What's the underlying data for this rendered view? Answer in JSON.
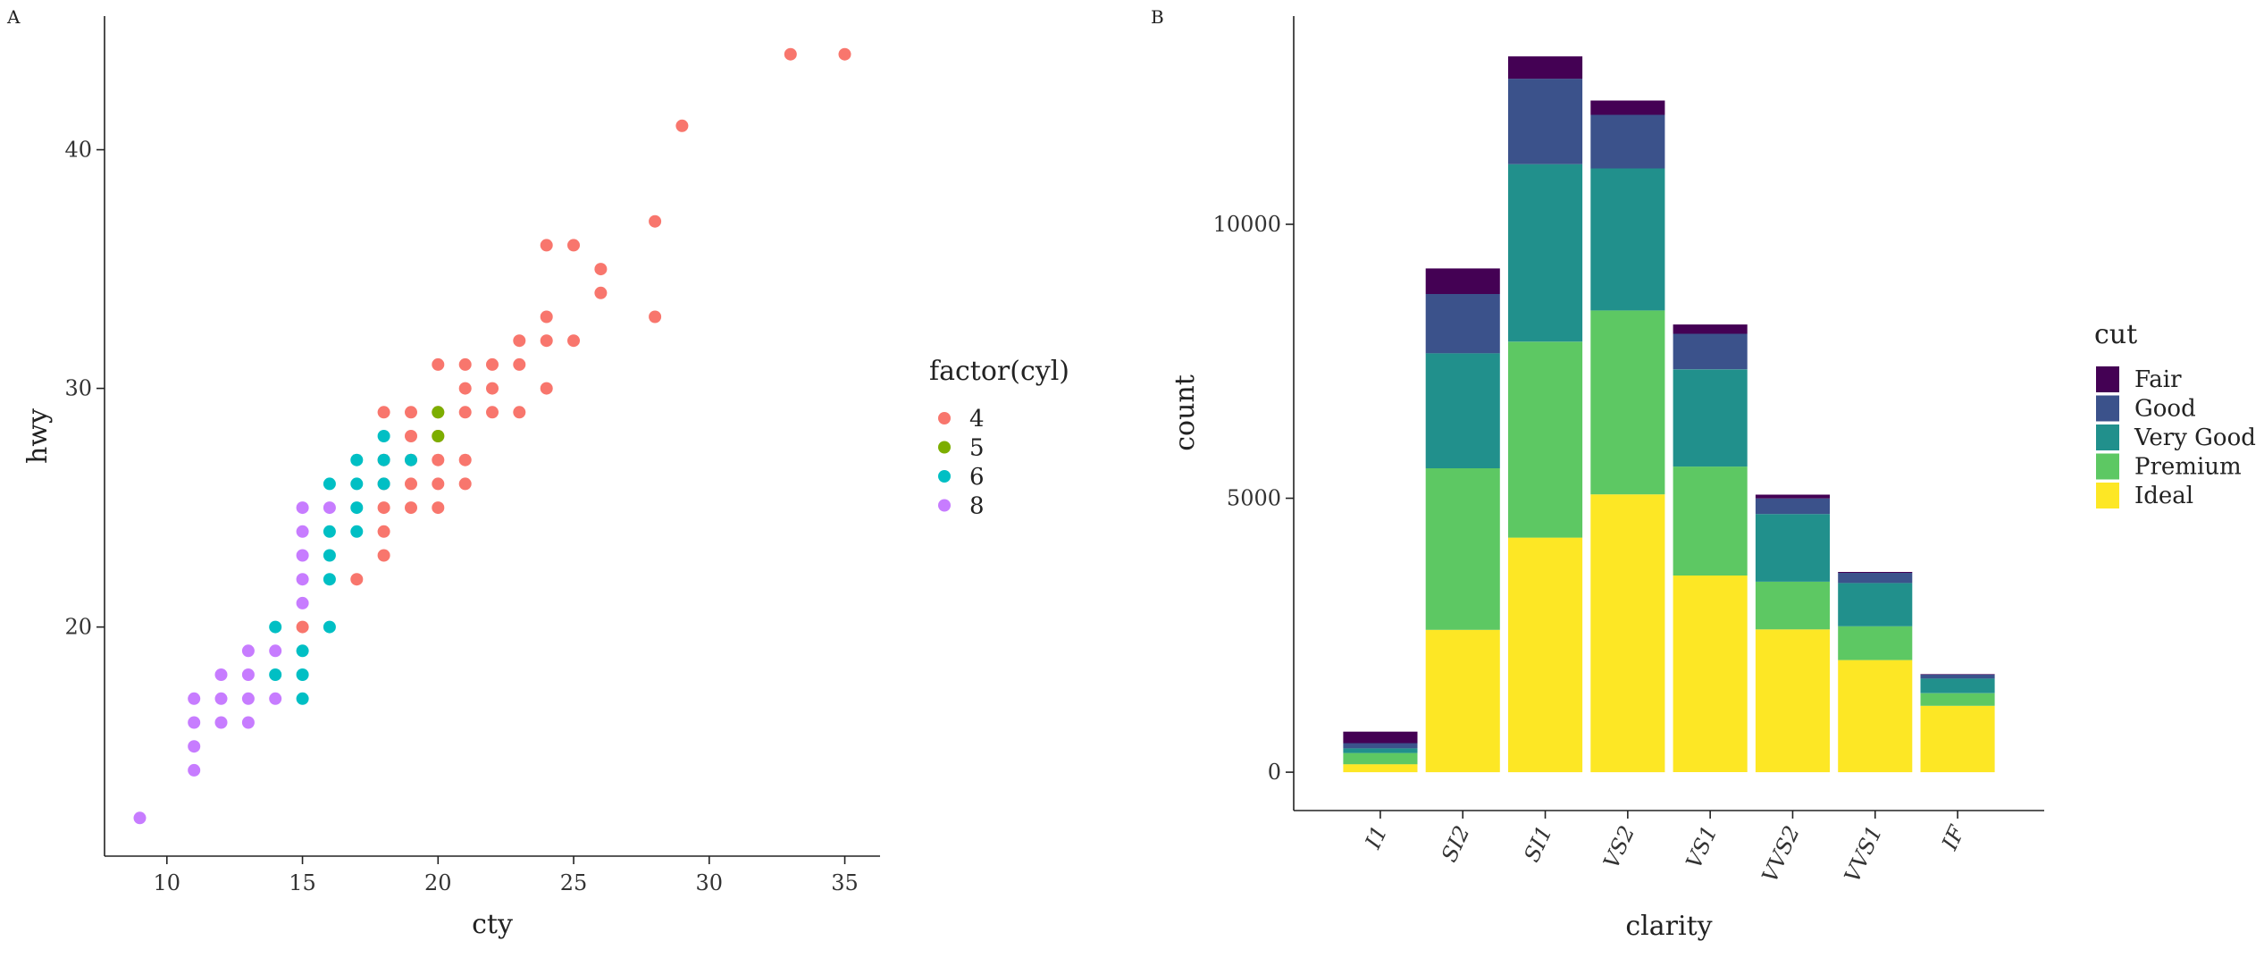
{
  "chart_data": [
    {
      "type": "scatter",
      "tag": "A",
      "xlabel": "cty",
      "ylabel": "hwy",
      "xlim": [
        7.7,
        36.3
      ],
      "ylim": [
        10.4,
        45.6
      ],
      "x_ticks": [
        10,
        15,
        20,
        25,
        30,
        35
      ],
      "y_ticks": [
        20,
        30,
        40
      ],
      "grid": false,
      "legend": {
        "title": "factor(cyl)",
        "position": "right",
        "entries": [
          {
            "label": "4",
            "color": "#F8766D"
          },
          {
            "label": "5",
            "color": "#7CAE00"
          },
          {
            "label": "6",
            "color": "#00BFC4"
          },
          {
            "label": "8",
            "color": "#C77CFF"
          }
        ]
      },
      "series": [
        {
          "name": "4",
          "color": "#F8766D",
          "points": [
            [
              15,
              20
            ],
            [
              17,
              22
            ],
            [
              18,
              23
            ],
            [
              18,
              24
            ],
            [
              18,
              25
            ],
            [
              18,
              26
            ],
            [
              18,
              27
            ],
            [
              18,
              29
            ],
            [
              19,
              25
            ],
            [
              19,
              26
            ],
            [
              19,
              27
            ],
            [
              19,
              28
            ],
            [
              19,
              29
            ],
            [
              20,
              25
            ],
            [
              20,
              26
            ],
            [
              20,
              27
            ],
            [
              20,
              28
            ],
            [
              20,
              29
            ],
            [
              20,
              31
            ],
            [
              21,
              26
            ],
            [
              21,
              27
            ],
            [
              21,
              29
            ],
            [
              21,
              30
            ],
            [
              21,
              31
            ],
            [
              22,
              29
            ],
            [
              22,
              30
            ],
            [
              22,
              31
            ],
            [
              23,
              29
            ],
            [
              23,
              31
            ],
            [
              23,
              32
            ],
            [
              24,
              30
            ],
            [
              24,
              32
            ],
            [
              24,
              33
            ],
            [
              24,
              36
            ],
            [
              25,
              32
            ],
            [
              25,
              36
            ],
            [
              26,
              34
            ],
            [
              26,
              35
            ],
            [
              28,
              33
            ],
            [
              28,
              37
            ],
            [
              29,
              41
            ],
            [
              33,
              44
            ],
            [
              35,
              44
            ]
          ]
        },
        {
          "name": "5",
          "color": "#7CAE00",
          "points": [
            [
              20,
              28
            ],
            [
              20,
              29
            ]
          ]
        },
        {
          "name": "6",
          "color": "#00BFC4",
          "points": [
            [
              14,
              18
            ],
            [
              14,
              20
            ],
            [
              15,
              17
            ],
            [
              15,
              18
            ],
            [
              15,
              19
            ],
            [
              16,
              20
            ],
            [
              16,
              22
            ],
            [
              16,
              23
            ],
            [
              16,
              24
            ],
            [
              16,
              26
            ],
            [
              17,
              24
            ],
            [
              17,
              25
            ],
            [
              17,
              26
            ],
            [
              17,
              27
            ],
            [
              18,
              26
            ],
            [
              18,
              27
            ],
            [
              18,
              28
            ],
            [
              19,
              27
            ]
          ]
        },
        {
          "name": "8",
          "color": "#C77CFF",
          "points": [
            [
              9,
              12
            ],
            [
              11,
              14
            ],
            [
              11,
              15
            ],
            [
              11,
              16
            ],
            [
              11,
              17
            ],
            [
              12,
              16
            ],
            [
              12,
              17
            ],
            [
              12,
              18
            ],
            [
              13,
              16
            ],
            [
              13,
              17
            ],
            [
              13,
              18
            ],
            [
              13,
              19
            ],
            [
              14,
              17
            ],
            [
              14,
              19
            ],
            [
              15,
              21
            ],
            [
              15,
              22
            ],
            [
              15,
              23
            ],
            [
              15,
              24
            ],
            [
              15,
              25
            ],
            [
              16,
              25
            ]
          ]
        }
      ]
    },
    {
      "type": "bar",
      "stacked": true,
      "tag": "B",
      "xlabel": "clarity",
      "ylabel": "count",
      "ylim": [
        -700,
        13800
      ],
      "y_ticks": [
        0,
        5000,
        10000
      ],
      "grid": false,
      "categories": [
        "I1",
        "SI2",
        "SI1",
        "VS2",
        "VS1",
        "VVS2",
        "VVS1",
        "IF"
      ],
      "legend": {
        "title": "cut",
        "position": "right",
        "entries": [
          {
            "label": "Fair",
            "color": "#440154"
          },
          {
            "label": "Good",
            "color": "#3B528B"
          },
          {
            "label": "Very Good",
            "color": "#21908C"
          },
          {
            "label": "Premium",
            "color": "#5DC863"
          },
          {
            "label": "Ideal",
            "color": "#FDE725"
          }
        ]
      },
      "series": [
        {
          "name": "Ideal",
          "color": "#FDE725",
          "values": [
            146,
            2598,
            4282,
            5071,
            3589,
            2606,
            2047,
            1212
          ]
        },
        {
          "name": "Premium",
          "color": "#5DC863",
          "values": [
            205,
            2949,
            3575,
            3357,
            1989,
            870,
            616,
            230
          ]
        },
        {
          "name": "Very Good",
          "color": "#21908C",
          "values": [
            84,
            2100,
            3240,
            2591,
            1775,
            1235,
            789,
            268
          ]
        },
        {
          "name": "Good",
          "color": "#3B528B",
          "values": [
            96,
            1081,
            1560,
            978,
            648,
            286,
            186,
            71
          ]
        },
        {
          "name": "Fair",
          "color": "#440154",
          "values": [
            210,
            466,
            408,
            261,
            170,
            69,
            17,
            9
          ]
        }
      ]
    }
  ]
}
